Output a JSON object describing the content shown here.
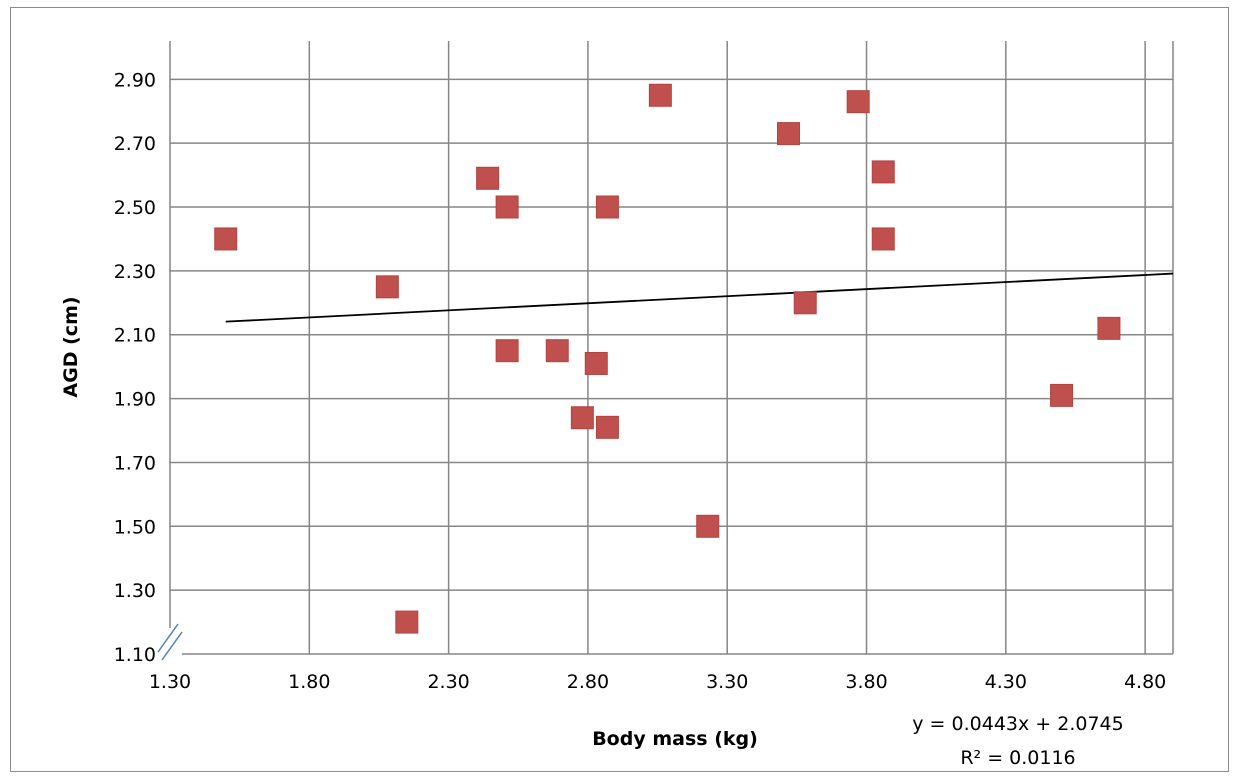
{
  "chart_data": {
    "type": "scatter",
    "title": "",
    "xlabel": "Body mass (kg)",
    "ylabel": "AGD (cm)",
    "xlim": [
      1.3,
      4.9
    ],
    "ylim": [
      1.1,
      3.02
    ],
    "xticks": [
      "1.30",
      "1.80",
      "2.30",
      "2.80",
      "3.30",
      "3.80",
      "4.30",
      "4.80"
    ],
    "yticks": [
      "1.10",
      "1.30",
      "1.50",
      "1.70",
      "1.90",
      "2.10",
      "2.30",
      "2.50",
      "2.70",
      "2.90"
    ],
    "grid": true,
    "axis_break": "y",
    "marker_color": "#c0504d",
    "trendline_color": "#000000",
    "points": [
      {
        "x": 1.5,
        "y": 2.4
      },
      {
        "x": 2.08,
        "y": 2.25
      },
      {
        "x": 2.15,
        "y": 1.2
      },
      {
        "x": 2.44,
        "y": 2.59
      },
      {
        "x": 2.51,
        "y": 2.5
      },
      {
        "x": 2.51,
        "y": 2.05
      },
      {
        "x": 2.69,
        "y": 2.05
      },
      {
        "x": 2.78,
        "y": 1.84
      },
      {
        "x": 2.83,
        "y": 2.01
      },
      {
        "x": 2.87,
        "y": 2.5
      },
      {
        "x": 2.87,
        "y": 1.81
      },
      {
        "x": 3.06,
        "y": 2.85
      },
      {
        "x": 3.23,
        "y": 1.5
      },
      {
        "x": 3.52,
        "y": 2.73
      },
      {
        "x": 3.58,
        "y": 2.2
      },
      {
        "x": 3.77,
        "y": 2.83
      },
      {
        "x": 3.86,
        "y": 2.61
      },
      {
        "x": 3.86,
        "y": 2.4
      },
      {
        "x": 4.5,
        "y": 1.91
      },
      {
        "x": 4.67,
        "y": 2.12
      }
    ],
    "trendline": {
      "slope": 0.0443,
      "intercept": 2.0745,
      "x_start": 1.5,
      "x_end": 4.9,
      "equation_label": "y = 0.0443x + 2.0745",
      "r2_label": "R² = 0.0116"
    }
  }
}
